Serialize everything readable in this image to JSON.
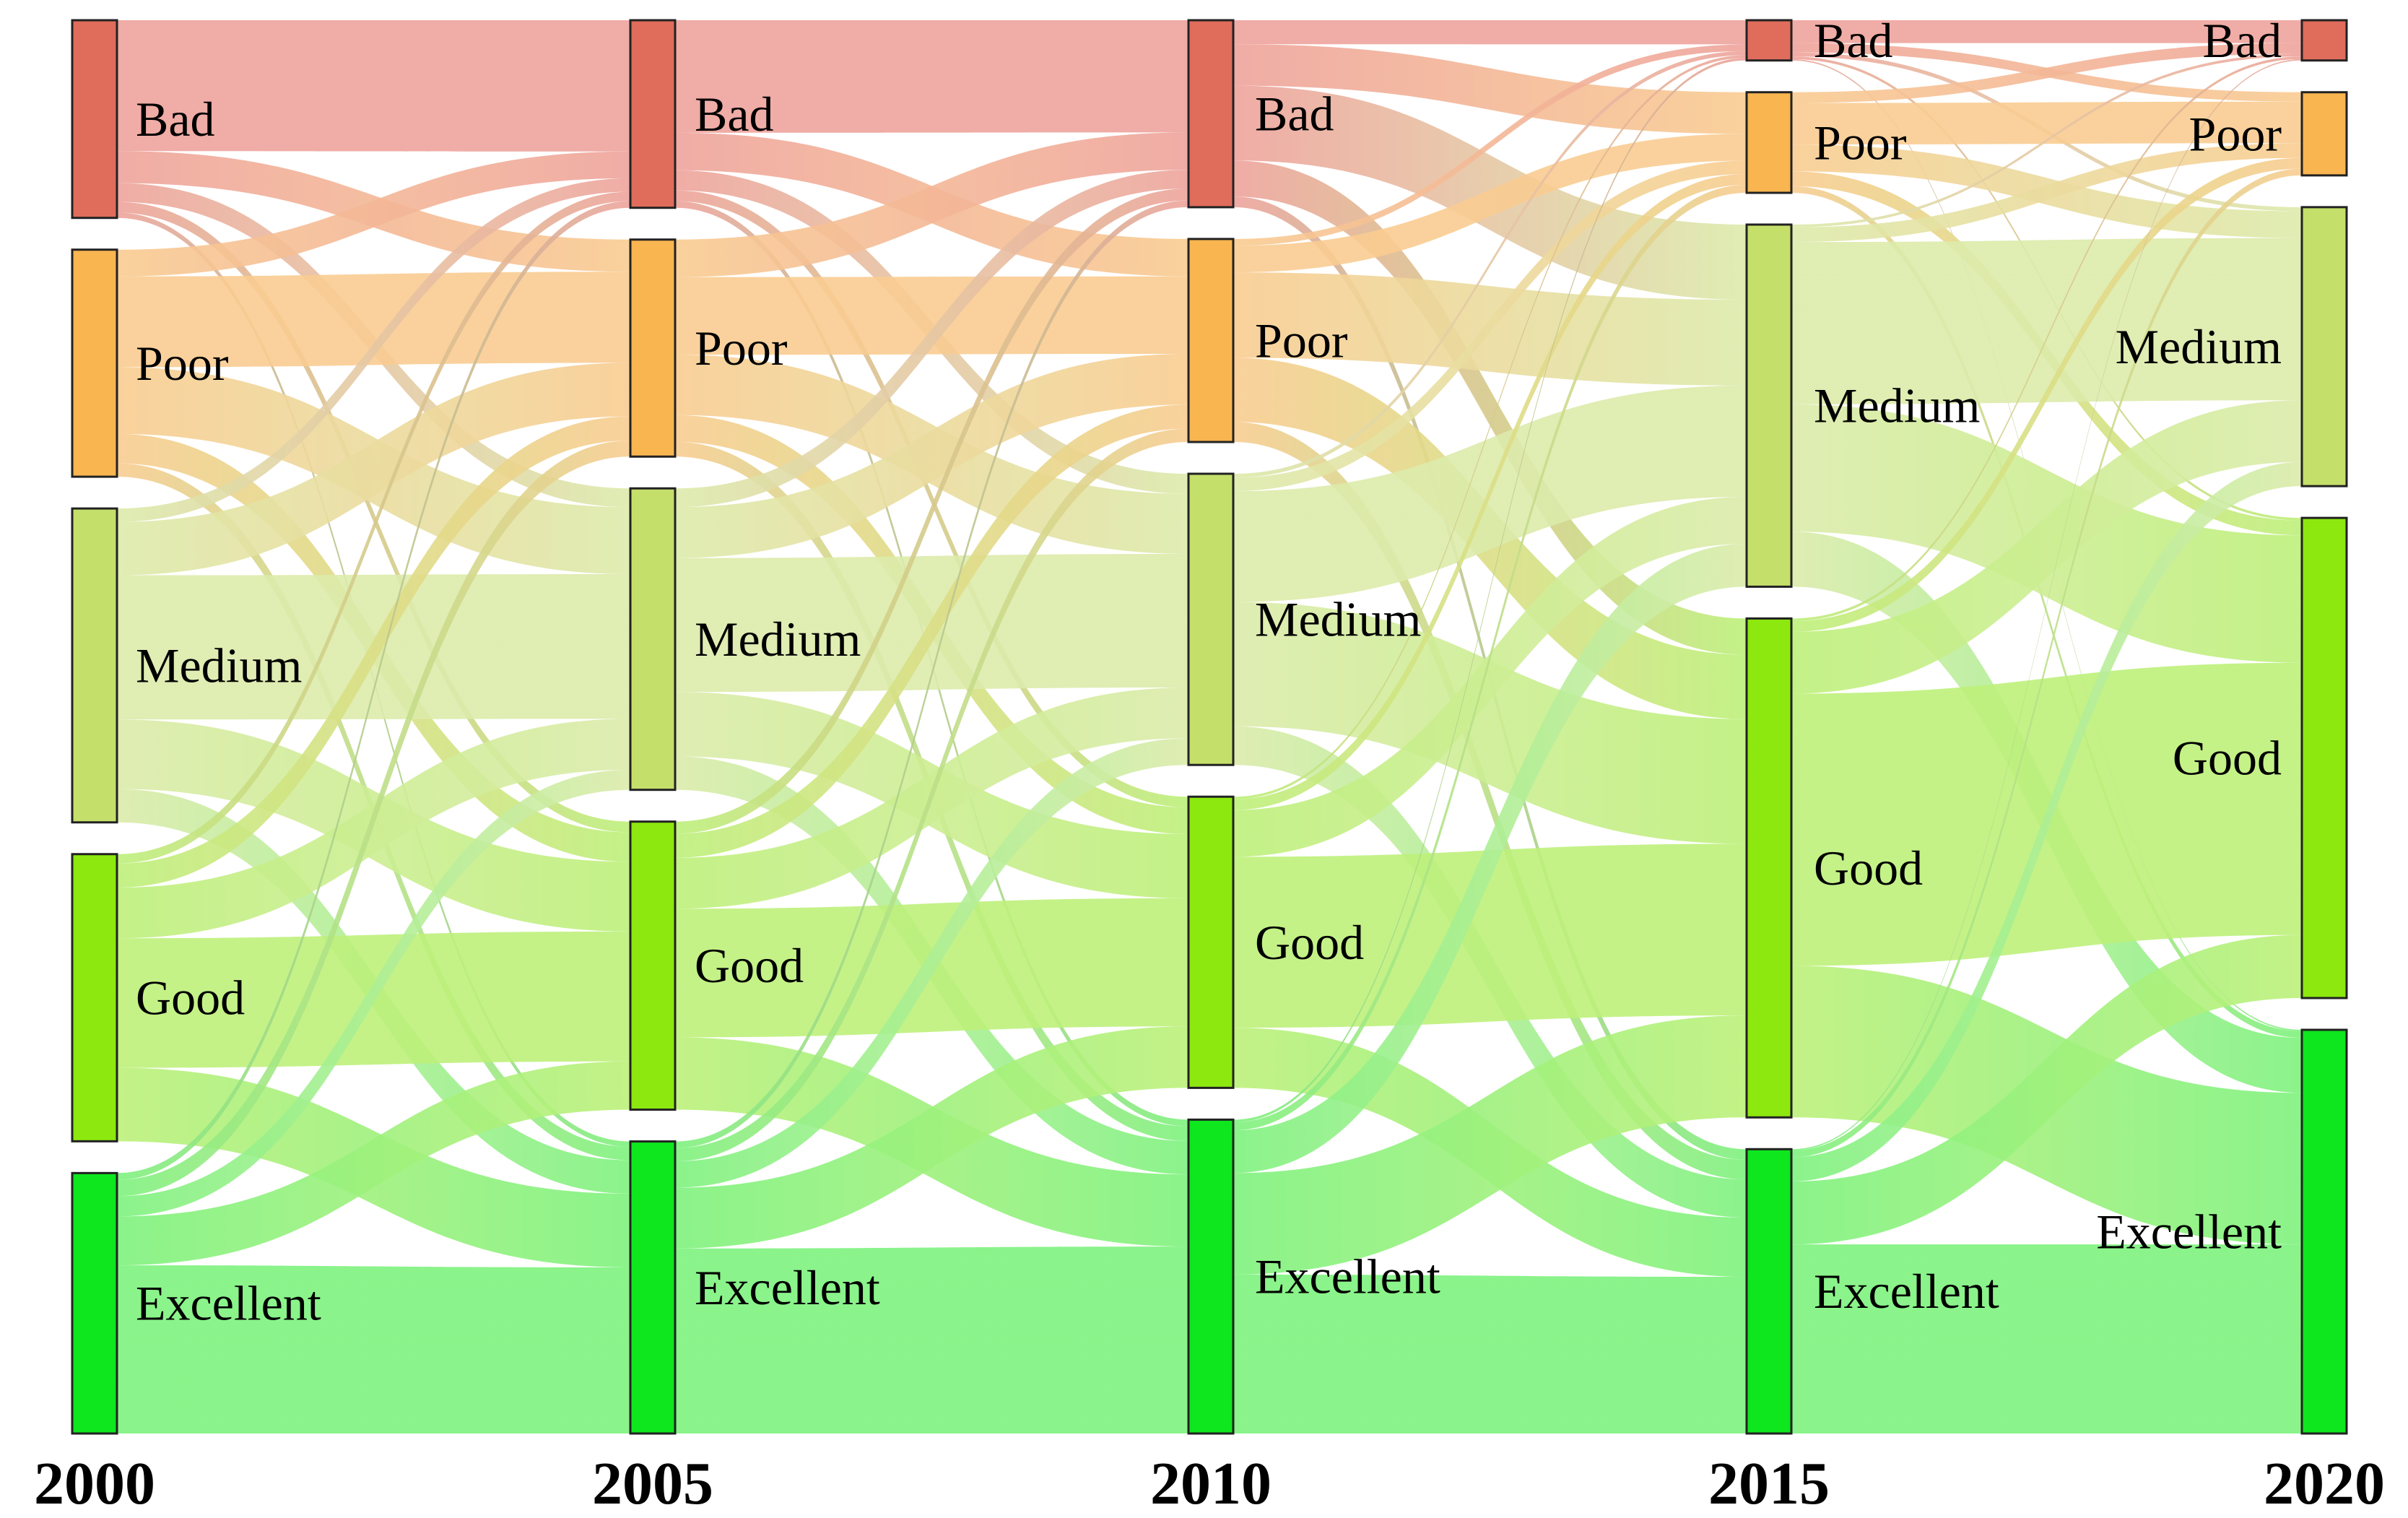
{
  "chart_data": {
    "type": "sankey",
    "title": "",
    "years": [
      "2000",
      "2005",
      "2010",
      "2015",
      "2020"
    ],
    "categories": [
      "Bad",
      "Poor",
      "Medium",
      "Good",
      "Excellent"
    ],
    "colors": {
      "Bad": "#e06c5c",
      "Poor": "#f8b550",
      "Medium": "#c5df6b",
      "Good": "#8ce80e",
      "Excellent": "#0ee61e"
    },
    "link_colors": {
      "Bad": "#eea39c",
      "Poor": "#f9cc91",
      "Medium": "#dcebab",
      "Good": "#bdf07a",
      "Excellent": "#7ef27e"
    },
    "node_values": [
      {
        "year": "2000",
        "values": {
          "Bad": 148,
          "Poor": 170,
          "Medium": 235,
          "Good": 215,
          "Excellent": 195
        }
      },
      {
        "year": "2005",
        "values": {
          "Bad": 140,
          "Poor": 162,
          "Medium": 225,
          "Good": 215,
          "Excellent": 218
        }
      },
      {
        "year": "2010",
        "values": {
          "Bad": 140,
          "Poor": 152,
          "Medium": 218,
          "Good": 218,
          "Excellent": 235
        }
      },
      {
        "year": "2015",
        "values": {
          "Bad": 30,
          "Poor": 75,
          "Medium": 270,
          "Good": 372,
          "Excellent": 212
        }
      },
      {
        "year": "2020",
        "values": {
          "Bad": 30,
          "Poor": 62,
          "Medium": 208,
          "Good": 358,
          "Excellent": 301
        }
      }
    ],
    "flows": [
      {
        "from_year": "2000",
        "to_year": "2005",
        "matrix": [
          [
            98,
            24,
            14,
            8,
            4
          ],
          [
            20,
            68,
            50,
            22,
            10
          ],
          [
            10,
            40,
            108,
            52,
            25
          ],
          [
            7,
            18,
            38,
            97,
            55
          ],
          [
            5,
            12,
            15,
            36,
            124
          ]
        ]
      },
      {
        "from_year": "2005",
        "to_year": "2010",
        "matrix": [
          [
            84,
            28,
            15,
            8,
            5
          ],
          [
            28,
            58,
            45,
            20,
            11
          ],
          [
            14,
            38,
            100,
            48,
            25
          ],
          [
            9,
            18,
            38,
            96,
            54
          ],
          [
            5,
            10,
            20,
            46,
            140
          ]
        ]
      },
      {
        "from_year": "2010",
        "to_year": "2015",
        "matrix": [
          [
            18,
            31,
            56,
            27,
            8
          ],
          [
            5,
            20,
            64,
            48,
            15
          ],
          [
            3,
            10,
            83,
            93,
            29
          ],
          [
            2,
            8,
            35,
            128,
            45
          ],
          [
            2,
            6,
            32,
            76,
            119
          ]
        ]
      },
      {
        "from_year": "2015",
        "to_year": "2020",
        "matrix": [
          [
            17,
            7,
            3,
            2,
            1
          ],
          [
            8,
            31,
            20,
            11,
            5
          ],
          [
            2,
            11,
            121,
            95,
            41
          ],
          [
            2,
            8,
            46,
            203,
            113
          ],
          [
            1,
            5,
            18,
            47,
            141
          ]
        ]
      }
    ]
  }
}
